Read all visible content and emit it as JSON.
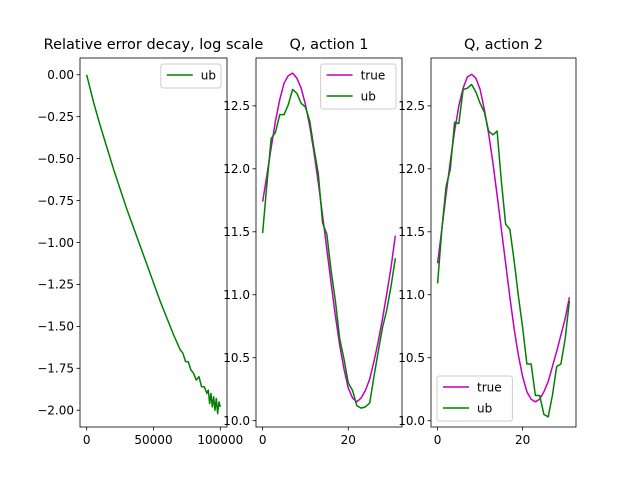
{
  "chart_data": [
    {
      "type": "line",
      "title": "Relative error decay, log scale",
      "xlim": [
        -5000,
        105000
      ],
      "ylim": [
        -2.1,
        0.1
      ],
      "xticks": [
        0,
        50000,
        100000
      ],
      "xtick_labels": [
        "0",
        "50000",
        "100000"
      ],
      "yticks": [
        0.0,
        -0.25,
        -0.5,
        -0.75,
        -1.0,
        -1.25,
        -1.5,
        -1.75,
        -2.0
      ],
      "ytick_labels": [
        "0.00",
        "−0.25",
        "−0.50",
        "−0.75",
        "−1.00",
        "−1.25",
        "−1.50",
        "−1.75",
        "−2.00"
      ],
      "legend_position": "upper right",
      "series": [
        {
          "name": "ub",
          "color": "#008000",
          "x": [
            0,
            5000,
            10000,
            15000,
            20000,
            25000,
            30000,
            35000,
            40000,
            45000,
            50000,
            55000,
            60000,
            65000,
            70000,
            72000,
            74000,
            76000,
            78000,
            80000,
            82000,
            84000,
            86000,
            88000,
            90000,
            91000,
            92000,
            93000,
            94000,
            95000,
            96000,
            97000,
            98000,
            99000,
            100000
          ],
          "y": [
            0.0,
            -0.16,
            -0.3,
            -0.43,
            -0.56,
            -0.68,
            -0.8,
            -0.91,
            -1.02,
            -1.13,
            -1.24,
            -1.35,
            -1.45,
            -1.55,
            -1.64,
            -1.66,
            -1.71,
            -1.71,
            -1.76,
            -1.78,
            -1.82,
            -1.8,
            -1.86,
            -1.86,
            -1.9,
            -1.88,
            -1.96,
            -1.9,
            -1.98,
            -1.92,
            -2.0,
            -1.93,
            -2.02,
            -1.95,
            -1.98
          ]
        }
      ]
    },
    {
      "type": "line",
      "title": "Q, action 1",
      "xlim": [
        -1.55,
        32.55
      ],
      "ylim": [
        9.95,
        12.88
      ],
      "xticks": [
        0,
        20
      ],
      "xtick_labels": [
        "0",
        "20"
      ],
      "yticks": [
        10.0,
        10.5,
        11.0,
        11.5,
        12.0,
        12.5
      ],
      "ytick_labels": [
        "10.0",
        "10.5",
        "11.0",
        "11.5",
        "12.0",
        "12.5"
      ],
      "legend_position": "upper right",
      "series": [
        {
          "name": "true",
          "color": "#bf00bf",
          "x": [
            0,
            1,
            2,
            3,
            4,
            5,
            6,
            7,
            8,
            9,
            10,
            11,
            12,
            13,
            14,
            15,
            16,
            17,
            18,
            19,
            20,
            21,
            22,
            23,
            24,
            25,
            26,
            27,
            28,
            29,
            30,
            31
          ],
          "y": [
            11.74,
            11.95,
            12.17,
            12.38,
            12.55,
            12.68,
            12.74,
            12.76,
            12.72,
            12.64,
            12.51,
            12.34,
            12.13,
            11.89,
            11.63,
            11.36,
            11.09,
            10.83,
            10.6,
            10.41,
            10.26,
            10.18,
            10.15,
            10.18,
            10.24,
            10.33,
            10.47,
            10.63,
            10.81,
            11.01,
            11.22,
            11.47
          ]
        },
        {
          "name": "ub",
          "color": "#008000",
          "x": [
            0,
            1,
            2,
            3,
            4,
            5,
            6,
            7,
            8,
            9,
            10,
            11,
            12,
            13,
            14,
            15,
            16,
            17,
            18,
            19,
            20,
            21,
            22,
            23,
            24,
            25,
            26,
            27,
            28,
            29,
            30,
            31
          ],
          "y": [
            11.49,
            11.88,
            12.24,
            12.29,
            12.43,
            12.43,
            12.51,
            12.63,
            12.6,
            12.52,
            12.49,
            12.38,
            12.16,
            11.96,
            11.57,
            11.48,
            11.19,
            10.95,
            10.65,
            10.49,
            10.3,
            10.24,
            10.12,
            10.1,
            10.11,
            10.14,
            10.35,
            10.55,
            10.74,
            10.88,
            11.07,
            11.29
          ]
        }
      ]
    },
    {
      "type": "line",
      "title": "Q, action 2",
      "xlim": [
        -1.55,
        32.55
      ],
      "ylim": [
        9.95,
        12.88
      ],
      "xticks": [
        0,
        20
      ],
      "xtick_labels": [
        "0",
        "20"
      ],
      "yticks": [
        10.0,
        10.5,
        11.0,
        11.5,
        12.0,
        12.5
      ],
      "ytick_labels": [
        "10.0",
        "10.5",
        "11.0",
        "11.5",
        "12.0",
        "12.5"
      ],
      "legend_position": "lower left",
      "series": [
        {
          "name": "true",
          "color": "#bf00bf",
          "x": [
            0,
            1,
            2,
            3,
            4,
            5,
            6,
            7,
            8,
            9,
            10,
            11,
            12,
            13,
            14,
            15,
            16,
            17,
            18,
            19,
            20,
            21,
            22,
            23,
            24,
            25,
            26,
            27,
            28,
            29,
            30,
            31
          ],
          "y": [
            11.25,
            11.52,
            11.8,
            12.06,
            12.3,
            12.5,
            12.64,
            12.73,
            12.75,
            12.72,
            12.63,
            12.47,
            12.28,
            12.05,
            11.79,
            11.52,
            11.25,
            10.98,
            10.73,
            10.52,
            10.35,
            10.23,
            10.17,
            10.15,
            10.17,
            10.23,
            10.31,
            10.43,
            10.55,
            10.68,
            10.81,
            10.98
          ]
        },
        {
          "name": "ub",
          "color": "#008000",
          "x": [
            0,
            1,
            2,
            3,
            4,
            5,
            6,
            7,
            8,
            9,
            10,
            11,
            12,
            13,
            14,
            15,
            16,
            17,
            18,
            19,
            20,
            21,
            22,
            23,
            24,
            25,
            26,
            27,
            28,
            29,
            30,
            31
          ],
          "y": [
            11.09,
            11.52,
            11.86,
            12.0,
            12.37,
            12.36,
            12.63,
            12.64,
            12.67,
            12.61,
            12.52,
            12.45,
            12.3,
            12.27,
            12.3,
            11.9,
            11.56,
            11.52,
            11.27,
            10.99,
            10.74,
            10.45,
            10.45,
            10.2,
            10.2,
            10.05,
            10.03,
            10.2,
            10.43,
            10.45,
            10.65,
            10.95
          ]
        }
      ]
    }
  ]
}
